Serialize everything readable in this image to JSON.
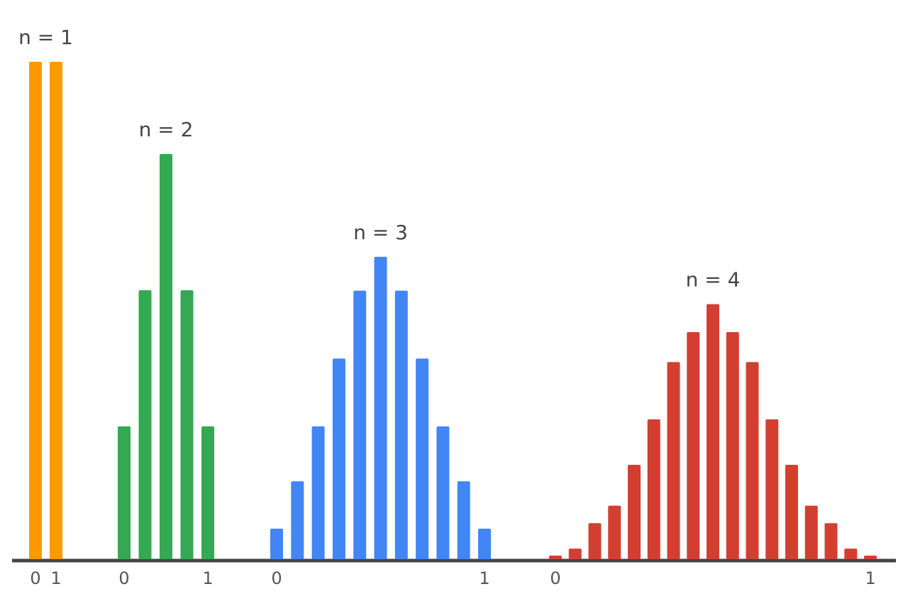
{
  "chart_data": [
    {
      "type": "bar",
      "title": "n = 1",
      "color": "#ff9900",
      "ylim": [
        0,
        100
      ],
      "categories": [
        "0",
        "1"
      ],
      "values": [
        100,
        100
      ]
    },
    {
      "type": "bar",
      "title": "n = 2",
      "color": "#34a853",
      "ylim": [
        0,
        100
      ],
      "categories": [
        "0",
        null,
        null,
        null,
        "1"
      ],
      "values": [
        26.9,
        54.2,
        81.5,
        54.2,
        26.9
      ]
    },
    {
      "type": "bar",
      "title": "n = 3",
      "color": "#4285f4",
      "ylim": [
        0,
        100
      ],
      "categories": [
        "0",
        null,
        null,
        null,
        null,
        null,
        null,
        null,
        null,
        null,
        "1"
      ],
      "values": [
        6.4,
        15.9,
        26.9,
        40.5,
        54.1,
        60.9,
        54.1,
        40.5,
        26.9,
        15.9,
        6.4
      ]
    },
    {
      "type": "bar",
      "title": "n = 4",
      "color": "#d23f31",
      "ylim": [
        0,
        100
      ],
      "categories": [
        "0",
        null,
        null,
        null,
        null,
        null,
        null,
        null,
        null,
        null,
        null,
        null,
        null,
        null,
        null,
        null,
        "1"
      ],
      "values": [
        1.0,
        2.4,
        7.5,
        11.0,
        19.2,
        28.3,
        39.8,
        45.8,
        51.4,
        45.8,
        39.8,
        28.3,
        19.2,
        11.0,
        7.5,
        2.4,
        1.0
      ]
    }
  ]
}
